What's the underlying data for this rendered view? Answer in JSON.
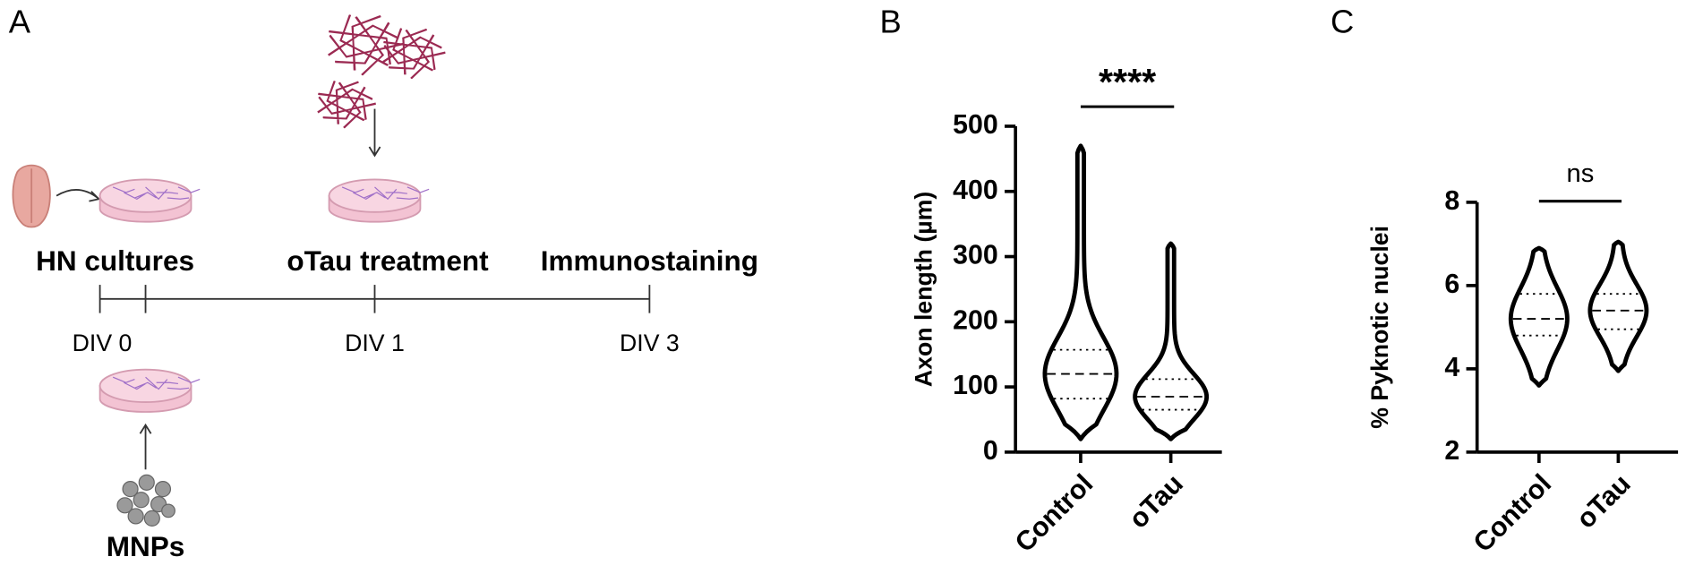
{
  "panel_labels": [
    "A",
    "B",
    "C"
  ],
  "diagram": {
    "stages": [
      "HN cultures",
      "oTau treatment",
      "Immunostaining"
    ],
    "timepoints": [
      "DIV 0",
      "DIV 1",
      "DIV 3"
    ],
    "additive": "MNPs"
  },
  "chart_data": [
    {
      "type": "violin",
      "y_label": "Axon length (µm)",
      "categories": [
        "Control",
        "oTau"
      ],
      "values": [
        {
          "min": 20,
          "q1": 82,
          "median": 120,
          "q3": 157,
          "max": 470
        },
        {
          "min": 20,
          "q1": 65,
          "median": 85,
          "q3": 112,
          "max": 320
        }
      ],
      "ylim": [
        0,
        500
      ],
      "yticks": [
        0,
        100,
        200,
        300,
        400,
        500
      ],
      "annotation": "****",
      "color": "#000000"
    },
    {
      "type": "violin",
      "y_label": "% Pyknotic nuclei",
      "categories": [
        "Control",
        "oTau"
      ],
      "values": [
        {
          "min": 3.6,
          "q1": 4.8,
          "median": 5.2,
          "q3": 5.8,
          "max": 6.9
        },
        {
          "min": 3.95,
          "q1": 4.95,
          "median": 5.4,
          "q3": 5.8,
          "max": 7.05
        }
      ],
      "ylim": [
        2,
        8
      ],
      "yticks": [
        2,
        4,
        6,
        8
      ],
      "annotation": "ns",
      "color": "#000000"
    }
  ]
}
